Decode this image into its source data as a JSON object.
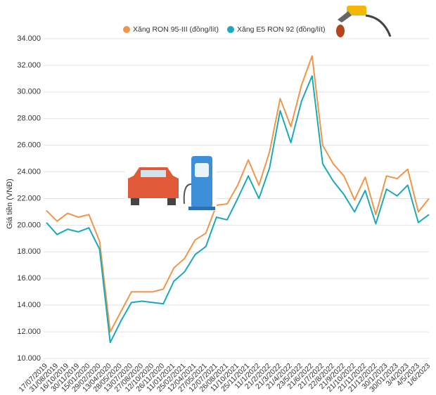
{
  "chart_data": {
    "type": "line",
    "y_label": "Giá tiền (VNĐ)",
    "categories": [
      "17/07/2019",
      "31/08/2019",
      "16/10/2019",
      "30/11/2019",
      "15/01/2020",
      "29/02/2020",
      "13/04/2020",
      "28/05/2020",
      "13/07/2020",
      "27/08/2020",
      "12/10/2020",
      "26/11/2020",
      "11/01/2021",
      "25/02/2021",
      "12/04/2021",
      "27/05/2021",
      "12/07/2021",
      "26/08/2021",
      "11/10/2021",
      "25/11/2021",
      "11/1/2022",
      "21/2/2022",
      "21/3/2022",
      "21/4/2022",
      "23/5/2022",
      "21/6/2022",
      "21/7/2022",
      "22/8/2022",
      "21/9/2022",
      "21/10/2022",
      "21/11/2022",
      "21/12/2022",
      "30/1/2023",
      "30/01/2023",
      "3/4/2023",
      "4/5/2023",
      "1/6/2023"
    ],
    "series": [
      {
        "name": "Xăng RON 95-III (đồng/lít)",
        "color": "#f0954a",
        "values": [
          21100,
          20300,
          20900,
          20600,
          20800,
          18800,
          12000,
          13500,
          15000,
          15000,
          15000,
          15200,
          16800,
          17500,
          18900,
          19400,
          21500,
          21600,
          23000,
          24900,
          23000,
          25500,
          29500,
          27400,
          30500,
          32700,
          26000,
          24600,
          23700,
          21900,
          23600,
          20800,
          23700,
          23500,
          24200,
          21000,
          22000
        ]
      },
      {
        "name": "Xăng E5 RON 92 (đồng/lít)",
        "color": "#1aa9b8",
        "values": [
          20200,
          19300,
          19700,
          19500,
          19800,
          18200,
          11200,
          12800,
          14200,
          14300,
          14200,
          14100,
          15800,
          16500,
          17800,
          18400,
          20600,
          20400,
          22000,
          23700,
          22000,
          24300,
          28600,
          26200,
          29300,
          31200,
          24600,
          23300,
          22300,
          21000,
          22600,
          20100,
          22700,
          22200,
          23000,
          20200,
          20800
        ]
      }
    ],
    "ylim": [
      10000,
      34000
    ],
    "yticks": [
      {
        "value": 10000,
        "label": "10.000"
      },
      {
        "value": 12000,
        "label": "12.000"
      },
      {
        "value": 14000,
        "label": "14.000"
      },
      {
        "value": 16000,
        "label": "16.000"
      },
      {
        "value": 18000,
        "label": "18.000"
      },
      {
        "value": 20000,
        "label": "20.000"
      },
      {
        "value": 22000,
        "label": "22.000"
      },
      {
        "value": 24000,
        "label": "24.000"
      },
      {
        "value": 26000,
        "label": "26.000"
      },
      {
        "value": 28000,
        "label": "28.000"
      },
      {
        "value": 30000,
        "label": "30.000"
      },
      {
        "value": 32000,
        "label": "32.000"
      },
      {
        "value": 34000,
        "label": "34.000"
      }
    ],
    "grid": true
  }
}
